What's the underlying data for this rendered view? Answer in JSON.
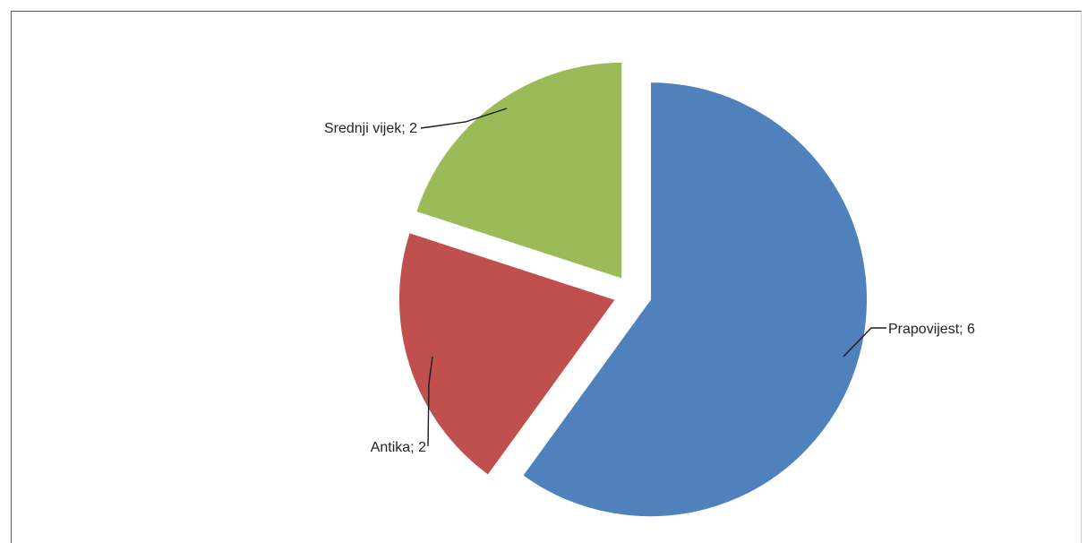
{
  "chart_data": {
    "type": "pie",
    "categories": [
      "Prapovijest",
      "Antika",
      "Srednji vijek"
    ],
    "values": [
      6,
      2,
      2
    ],
    "title": "",
    "legend": "none",
    "data_labels": [
      "Prapovijest; 6",
      "Antika; 2",
      "Srednji vijek; 2"
    ],
    "colors": [
      "#4F81BD",
      "#C0504D",
      "#9BBB59"
    ],
    "exploded": true
  }
}
